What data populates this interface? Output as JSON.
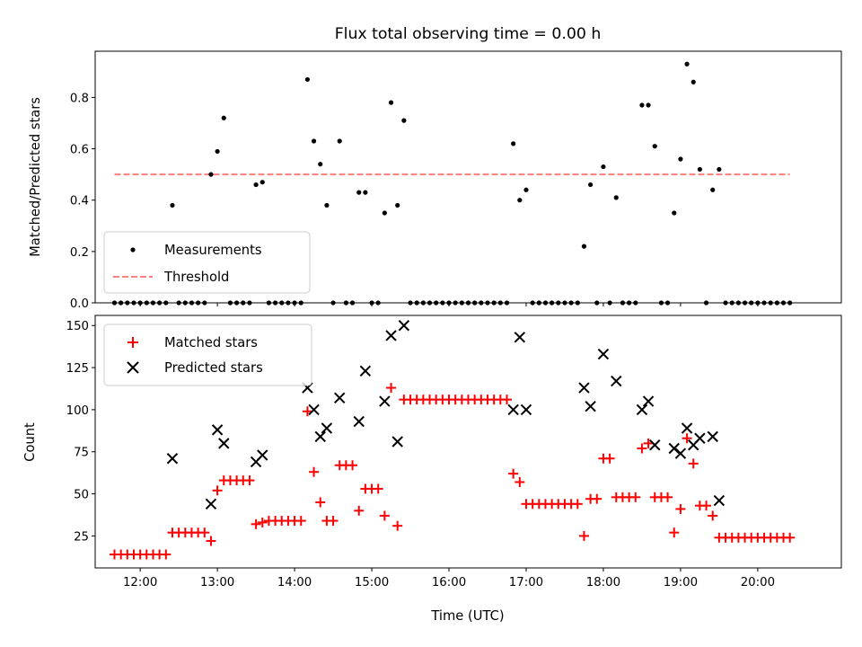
{
  "chart_data": [
    {
      "type": "scatter",
      "title": "Flux total observing time = 0.00 h",
      "xlabel": "",
      "ylabel": "Matched/Predicted stars",
      "xlim": [
        "11:25",
        "21:05"
      ],
      "ylim": [
        0,
        0.98
      ],
      "yticks": [
        0.0,
        0.2,
        0.4,
        0.6,
        0.8
      ],
      "ytick_labels": [
        "0.0",
        "0.2",
        "0.4",
        "0.6",
        "0.8"
      ],
      "legend": {
        "position": "lower-left",
        "entries": [
          "Measurements",
          "Threshold"
        ]
      },
      "threshold": {
        "name": "Threshold",
        "y": 0.5,
        "x_start": "11:40",
        "x_end": "20:25",
        "color": "#ff8080",
        "style": "dashed"
      },
      "series": [
        {
          "name": "Measurements",
          "color": "#000000",
          "marker": "dot",
          "points": [
            [
              "11:40",
              0
            ],
            [
              "11:45",
              0
            ],
            [
              "11:50",
              0
            ],
            [
              "11:55",
              0
            ],
            [
              "12:00",
              0
            ],
            [
              "12:05",
              0
            ],
            [
              "12:10",
              0
            ],
            [
              "12:15",
              0
            ],
            [
              "12:20",
              0
            ],
            [
              "12:25",
              0.38
            ],
            [
              "12:30",
              0
            ],
            [
              "12:35",
              0
            ],
            [
              "12:40",
              0
            ],
            [
              "12:45",
              0
            ],
            [
              "12:50",
              0
            ],
            [
              "12:55",
              0.5
            ],
            [
              "13:00",
              0.59
            ],
            [
              "13:05",
              0.72
            ],
            [
              "13:10",
              0
            ],
            [
              "13:15",
              0
            ],
            [
              "13:20",
              0
            ],
            [
              "13:25",
              0
            ],
            [
              "13:30",
              0.46
            ],
            [
              "13:35",
              0.47
            ],
            [
              "13:40",
              0
            ],
            [
              "13:45",
              0
            ],
            [
              "13:50",
              0
            ],
            [
              "13:55",
              0
            ],
            [
              "14:00",
              0
            ],
            [
              "14:05",
              0
            ],
            [
              "14:10",
              0.87
            ],
            [
              "14:15",
              0.63
            ],
            [
              "14:20",
              0.54
            ],
            [
              "14:25",
              0.38
            ],
            [
              "14:30",
              0
            ],
            [
              "14:35",
              0.63
            ],
            [
              "14:40",
              0
            ],
            [
              "14:45",
              0
            ],
            [
              "14:50",
              0.43
            ],
            [
              "14:55",
              0.43
            ],
            [
              "15:00",
              0
            ],
            [
              "15:05",
              0
            ],
            [
              "15:10",
              0.35
            ],
            [
              "15:15",
              0.78
            ],
            [
              "15:20",
              0.38
            ],
            [
              "15:25",
              0.71
            ],
            [
              "15:30",
              0
            ],
            [
              "15:35",
              0
            ],
            [
              "15:40",
              0
            ],
            [
              "15:45",
              0
            ],
            [
              "15:50",
              0
            ],
            [
              "15:55",
              0
            ],
            [
              "16:00",
              0
            ],
            [
              "16:05",
              0
            ],
            [
              "16:10",
              0
            ],
            [
              "16:15",
              0
            ],
            [
              "16:20",
              0
            ],
            [
              "16:25",
              0
            ],
            [
              "16:30",
              0
            ],
            [
              "16:35",
              0
            ],
            [
              "16:40",
              0
            ],
            [
              "16:45",
              0
            ],
            [
              "16:50",
              0.62
            ],
            [
              "16:55",
              0.4
            ],
            [
              "17:00",
              0.44
            ],
            [
              "17:05",
              0
            ],
            [
              "17:10",
              0
            ],
            [
              "17:15",
              0
            ],
            [
              "17:20",
              0
            ],
            [
              "17:25",
              0
            ],
            [
              "17:30",
              0
            ],
            [
              "17:35",
              0
            ],
            [
              "17:40",
              0
            ],
            [
              "17:45",
              0.22
            ],
            [
              "17:50",
              0.46
            ],
            [
              "17:55",
              0
            ],
            [
              "18:00",
              0.53
            ],
            [
              "18:05",
              0
            ],
            [
              "18:10",
              0.41
            ],
            [
              "18:15",
              0
            ],
            [
              "18:20",
              0
            ],
            [
              "18:25",
              0
            ],
            [
              "18:30",
              0.77
            ],
            [
              "18:35",
              0.77
            ],
            [
              "18:40",
              0.61
            ],
            [
              "18:45",
              0
            ],
            [
              "18:50",
              0
            ],
            [
              "18:55",
              0.35
            ],
            [
              "19:00",
              0.56
            ],
            [
              "19:05",
              0.93
            ],
            [
              "19:10",
              0.86
            ],
            [
              "19:15",
              0.52
            ],
            [
              "19:20",
              0
            ],
            [
              "19:25",
              0.44
            ],
            [
              "19:30",
              0.52
            ],
            [
              "19:35",
              0
            ],
            [
              "19:40",
              0
            ],
            [
              "19:45",
              0
            ],
            [
              "19:50",
              0
            ],
            [
              "19:55",
              0
            ],
            [
              "20:00",
              0
            ],
            [
              "20:05",
              0
            ],
            [
              "20:10",
              0
            ],
            [
              "20:15",
              0
            ],
            [
              "20:20",
              0
            ],
            [
              "20:25",
              0
            ]
          ]
        }
      ]
    },
    {
      "type": "scatter",
      "title": "",
      "xlabel": "Time (UTC)",
      "ylabel": "Count",
      "xlim": [
        "11:25",
        "21:05"
      ],
      "ylim": [
        6,
        156
      ],
      "xticks": [
        "12:00",
        "13:00",
        "14:00",
        "15:00",
        "16:00",
        "17:00",
        "18:00",
        "19:00",
        "20:00"
      ],
      "yticks": [
        25,
        50,
        75,
        100,
        125,
        150
      ],
      "ytick_labels": [
        "25",
        "50",
        "75",
        "100",
        "125",
        "150"
      ],
      "legend": {
        "position": "top-left",
        "entries": [
          "Matched stars",
          "Predicted stars"
        ]
      },
      "series": [
        {
          "name": "Matched stars",
          "color": "#ff0000",
          "marker": "plus",
          "points": [
            [
              "11:40",
              14
            ],
            [
              "11:45",
              14
            ],
            [
              "11:50",
              14
            ],
            [
              "11:55",
              14
            ],
            [
              "12:00",
              14
            ],
            [
              "12:05",
              14
            ],
            [
              "12:10",
              14
            ],
            [
              "12:15",
              14
            ],
            [
              "12:20",
              14
            ],
            [
              "12:25",
              27
            ],
            [
              "12:30",
              27
            ],
            [
              "12:35",
              27
            ],
            [
              "12:40",
              27
            ],
            [
              "12:45",
              27
            ],
            [
              "12:50",
              27
            ],
            [
              "12:55",
              22
            ],
            [
              "13:00",
              52
            ],
            [
              "13:05",
              58
            ],
            [
              "13:10",
              58
            ],
            [
              "13:15",
              58
            ],
            [
              "13:20",
              58
            ],
            [
              "13:25",
              58
            ],
            [
              "13:30",
              32
            ],
            [
              "13:35",
              33
            ],
            [
              "13:40",
              34
            ],
            [
              "13:45",
              34
            ],
            [
              "13:50",
              34
            ],
            [
              "13:55",
              34
            ],
            [
              "14:00",
              34
            ],
            [
              "14:05",
              34
            ],
            [
              "14:10",
              99
            ],
            [
              "14:15",
              63
            ],
            [
              "14:20",
              45
            ],
            [
              "14:25",
              34
            ],
            [
              "14:30",
              34
            ],
            [
              "14:35",
              67
            ],
            [
              "14:40",
              67
            ],
            [
              "14:45",
              67
            ],
            [
              "14:50",
              40
            ],
            [
              "14:55",
              53
            ],
            [
              "15:00",
              53
            ],
            [
              "15:05",
              53
            ],
            [
              "15:10",
              37
            ],
            [
              "15:15",
              113
            ],
            [
              "15:20",
              31
            ],
            [
              "15:25",
              106
            ],
            [
              "15:30",
              106
            ],
            [
              "15:35",
              106
            ],
            [
              "15:40",
              106
            ],
            [
              "15:45",
              106
            ],
            [
              "15:50",
              106
            ],
            [
              "15:55",
              106
            ],
            [
              "16:00",
              106
            ],
            [
              "16:05",
              106
            ],
            [
              "16:10",
              106
            ],
            [
              "16:15",
              106
            ],
            [
              "16:20",
              106
            ],
            [
              "16:25",
              106
            ],
            [
              "16:30",
              106
            ],
            [
              "16:35",
              106
            ],
            [
              "16:40",
              106
            ],
            [
              "16:45",
              106
            ],
            [
              "16:50",
              62
            ],
            [
              "16:55",
              57
            ],
            [
              "17:00",
              44
            ],
            [
              "17:05",
              44
            ],
            [
              "17:10",
              44
            ],
            [
              "17:15",
              44
            ],
            [
              "17:20",
              44
            ],
            [
              "17:25",
              44
            ],
            [
              "17:30",
              44
            ],
            [
              "17:35",
              44
            ],
            [
              "17:40",
              44
            ],
            [
              "17:45",
              25
            ],
            [
              "17:50",
              47
            ],
            [
              "17:55",
              47
            ],
            [
              "18:00",
              71
            ],
            [
              "18:05",
              71
            ],
            [
              "18:10",
              48
            ],
            [
              "18:15",
              48
            ],
            [
              "18:20",
              48
            ],
            [
              "18:25",
              48
            ],
            [
              "18:30",
              77
            ],
            [
              "18:35",
              80
            ],
            [
              "18:40",
              48
            ],
            [
              "18:45",
              48
            ],
            [
              "18:50",
              48
            ],
            [
              "18:55",
              27
            ],
            [
              "19:00",
              41
            ],
            [
              "19:05",
              83
            ],
            [
              "19:10",
              68
            ],
            [
              "19:15",
              43
            ],
            [
              "19:20",
              43
            ],
            [
              "19:25",
              37
            ],
            [
              "19:30",
              24
            ],
            [
              "19:35",
              24
            ],
            [
              "19:40",
              24
            ],
            [
              "19:45",
              24
            ],
            [
              "19:50",
              24
            ],
            [
              "19:55",
              24
            ],
            [
              "20:00",
              24
            ],
            [
              "20:05",
              24
            ],
            [
              "20:10",
              24
            ],
            [
              "20:15",
              24
            ],
            [
              "20:20",
              24
            ],
            [
              "20:25",
              24
            ]
          ]
        },
        {
          "name": "Predicted stars",
          "color": "#000000",
          "marker": "x",
          "points": [
            [
              "12:25",
              71
            ],
            [
              "12:55",
              44
            ],
            [
              "13:00",
              88
            ],
            [
              "13:05",
              80
            ],
            [
              "13:30",
              69
            ],
            [
              "13:35",
              73
            ],
            [
              "14:10",
              113
            ],
            [
              "14:15",
              100
            ],
            [
              "14:20",
              84
            ],
            [
              "14:25",
              89
            ],
            [
              "14:35",
              107
            ],
            [
              "14:50",
              93
            ],
            [
              "14:55",
              123
            ],
            [
              "15:10",
              105
            ],
            [
              "15:15",
              144
            ],
            [
              "15:20",
              81
            ],
            [
              "15:25",
              150
            ],
            [
              "16:50",
              100
            ],
            [
              "16:55",
              143
            ],
            [
              "17:00",
              100
            ],
            [
              "17:45",
              113
            ],
            [
              "17:50",
              102
            ],
            [
              "18:00",
              133
            ],
            [
              "18:10",
              117
            ],
            [
              "18:30",
              100
            ],
            [
              "18:35",
              105
            ],
            [
              "18:40",
              79
            ],
            [
              "18:55",
              77
            ],
            [
              "19:00",
              74
            ],
            [
              "19:05",
              89
            ],
            [
              "19:10",
              79
            ],
            [
              "19:15",
              83
            ],
            [
              "19:25",
              84
            ],
            [
              "19:30",
              46
            ]
          ]
        }
      ]
    }
  ]
}
